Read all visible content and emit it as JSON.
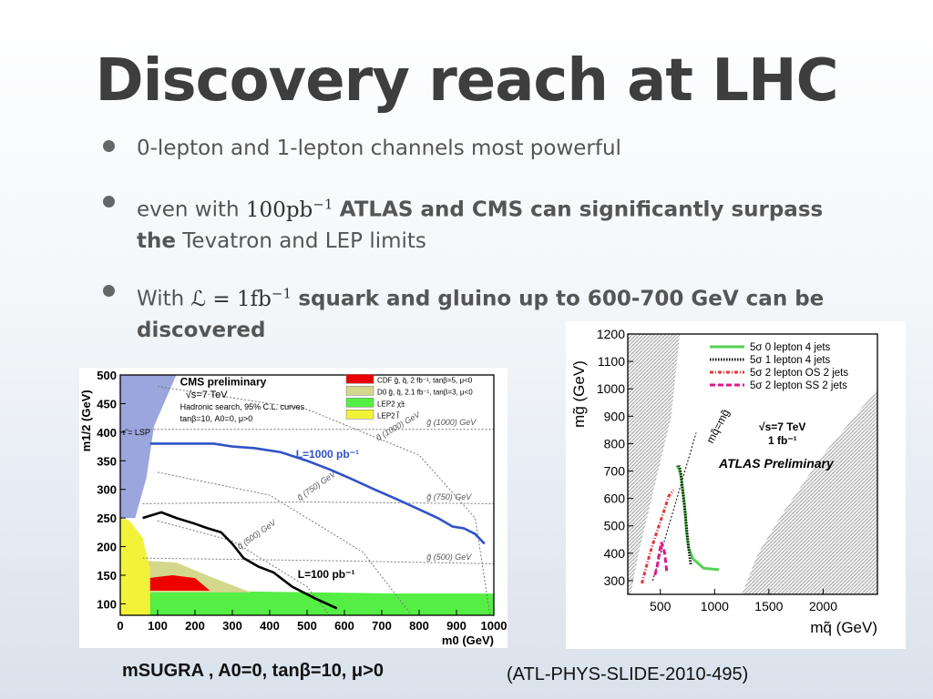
{
  "slide": {
    "title": "Discovery reach at LHC",
    "bullets": [
      {
        "text": "0-lepton and 1-lepton channels most powerful"
      },
      {
        "pre": "even with",
        "math": "100pb",
        "math_sup": "−1",
        "bold": "ATLAS and CMS can significantly surpass the",
        "post": "Tevatron and LEP limits"
      },
      {
        "pre": "With",
        "math": "ℒ = 1fb",
        "math_sup": "−1",
        "bold": "squark and gluino up to 600-700 GeV can be discovered"
      }
    ],
    "caption_left": "mSUGRA , A0=0, tanβ=10, μ>0",
    "caption_right": "(ATL-PHYS-SLIDE-2010-495)"
  },
  "chart_data": [
    {
      "type": "line",
      "title": "CMS preliminary",
      "subtitle_lines": [
        "√s=7 TeV",
        "Hadronic search, 95% C.L. curves",
        "tanβ=10, A0=0, μ>0"
      ],
      "xlabel": "m0 (GeV)",
      "ylabel": "m1/2 (GeV)",
      "xlim": [
        0,
        1000
      ],
      "ylim": [
        80,
        500
      ],
      "xticks": [
        0,
        100,
        200,
        300,
        400,
        500,
        600,
        700,
        800,
        900,
        1000
      ],
      "yticks": [
        100,
        150,
        200,
        250,
        300,
        350,
        400,
        450,
        500
      ],
      "region_label": "τ̃ = LSP",
      "legend": [
        {
          "label": "CDF  g̃, q̃,  2 fb⁻¹,  tanβ=5,  μ<0",
          "color": "#ee0000"
        },
        {
          "label": "D0   g̃, q̃,  2.1 fb⁻¹,  tanβ=3,  μ<0",
          "color": "#d4d88c"
        },
        {
          "label": "LEP2  χ̃±",
          "color": "#55ee44"
        },
        {
          "label": "LEP2  l̃",
          "color": "#f2f238"
        }
      ],
      "series": [
        {
          "name": "L=1000 pb⁻¹",
          "color": "#2f52c8",
          "x": [
            80,
            150,
            250,
            300,
            360,
            430,
            500,
            560,
            620,
            680,
            740,
            800,
            850,
            890,
            920,
            950,
            975
          ],
          "y": [
            380,
            380,
            380,
            375,
            372,
            365,
            350,
            335,
            318,
            300,
            283,
            265,
            250,
            235,
            232,
            222,
            205
          ]
        },
        {
          "name": "L=100 pb⁻¹",
          "color": "#000000",
          "x": [
            60,
            110,
            150,
            200,
            230,
            270,
            300,
            330,
            370,
            410,
            460,
            520,
            560,
            580
          ],
          "y": [
            250,
            260,
            250,
            240,
            233,
            225,
            205,
            180,
            165,
            155,
            130,
            110,
            98,
            92
          ]
        }
      ],
      "gluino_contours": [
        "g̃ (1000) GeV",
        "g̃ (750) GeV",
        "g̃ (500) GeV"
      ],
      "squark_contours": [
        "q̃ (1000) GeV",
        "q̃ (750) GeV",
        "q̃ (500) GeV"
      ]
    },
    {
      "type": "line",
      "title": "ATLAS Preliminary",
      "annotations": [
        "√s=7 TeV",
        "1 fb⁻¹",
        "mq̃=mg̃"
      ],
      "xlabel": "mq̃ (GeV)",
      "ylabel": "mg̃ (GeV)",
      "xlim": [
        200,
        2500
      ],
      "ylim": [
        250,
        1200
      ],
      "xticks": [
        500,
        1000,
        1500,
        2000
      ],
      "yticks": [
        300,
        400,
        500,
        600,
        700,
        800,
        900,
        1000,
        1100,
        1200
      ],
      "series": [
        {
          "name": "5σ 0 lepton 4 jets",
          "color": "#55d155",
          "style": "solid",
          "x": [
            1040,
            900,
            800,
            760,
            740,
            730,
            710,
            690,
            670,
            650
          ],
          "y": [
            340,
            345,
            380,
            420,
            480,
            550,
            620,
            680,
            710,
            720
          ]
        },
        {
          "name": "5σ 1 lepton 4 jets",
          "color": "#111111",
          "style": "dotted",
          "x": [
            780,
            760,
            740,
            720,
            700,
            690,
            680,
            670
          ],
          "y": [
            360,
            420,
            500,
            580,
            650,
            690,
            710,
            720
          ]
        },
        {
          "name": "5σ 2 lepton OS 2 jets",
          "color": "#e0383a",
          "style": "dashdot",
          "x": [
            330,
            370,
            420,
            470,
            530,
            580,
            620
          ],
          "y": [
            290,
            350,
            420,
            480,
            550,
            610,
            630
          ]
        },
        {
          "name": "5σ 2 lepton SS 2 jets",
          "color": "#e0188c",
          "style": "dashed",
          "x": [
            450,
            470,
            490,
            510,
            540,
            560
          ],
          "y": [
            320,
            350,
            400,
            440,
            400,
            330
          ]
        }
      ]
    }
  ]
}
